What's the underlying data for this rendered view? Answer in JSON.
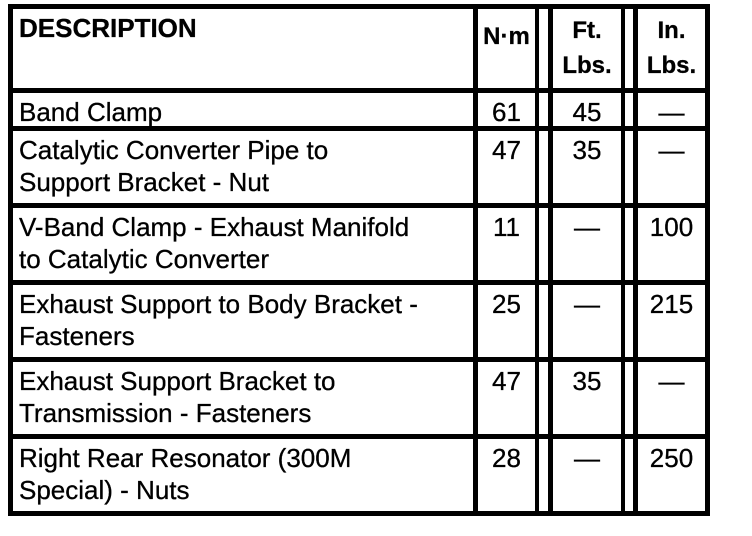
{
  "table": {
    "header": {
      "description": "DESCRIPTION",
      "nm": "N·m",
      "ft_line1": "Ft.",
      "ft_line2": "Lbs.",
      "in_line1": "In.",
      "in_line2": "Lbs."
    },
    "rows": [
      {
        "description": "Band Clamp",
        "nm": "61",
        "ft_lbs": "45",
        "in_lbs": "—"
      },
      {
        "description": "Catalytic Converter Pipe to\nSupport Bracket - Nut",
        "nm": "47",
        "ft_lbs": "35",
        "in_lbs": "—"
      },
      {
        "description": "V-Band Clamp - Exhaust Manifold\nto Catalytic Converter",
        "nm": "11",
        "ft_lbs": "—",
        "in_lbs": "100"
      },
      {
        "description": "Exhaust Support to Body Bracket -\nFasteners",
        "nm": "25",
        "ft_lbs": "—",
        "in_lbs": "215"
      },
      {
        "description": "Exhaust Support Bracket to\nTransmission - Fasteners",
        "nm": "47",
        "ft_lbs": "35",
        "in_lbs": "—"
      },
      {
        "description": "Right Rear Resonator (300M\nSpecial) - Nuts",
        "nm": "28",
        "ft_lbs": "—",
        "in_lbs": "250"
      }
    ],
    "colors": {
      "border": "#000000",
      "background": "#ffffff",
      "text": "#000000"
    }
  }
}
